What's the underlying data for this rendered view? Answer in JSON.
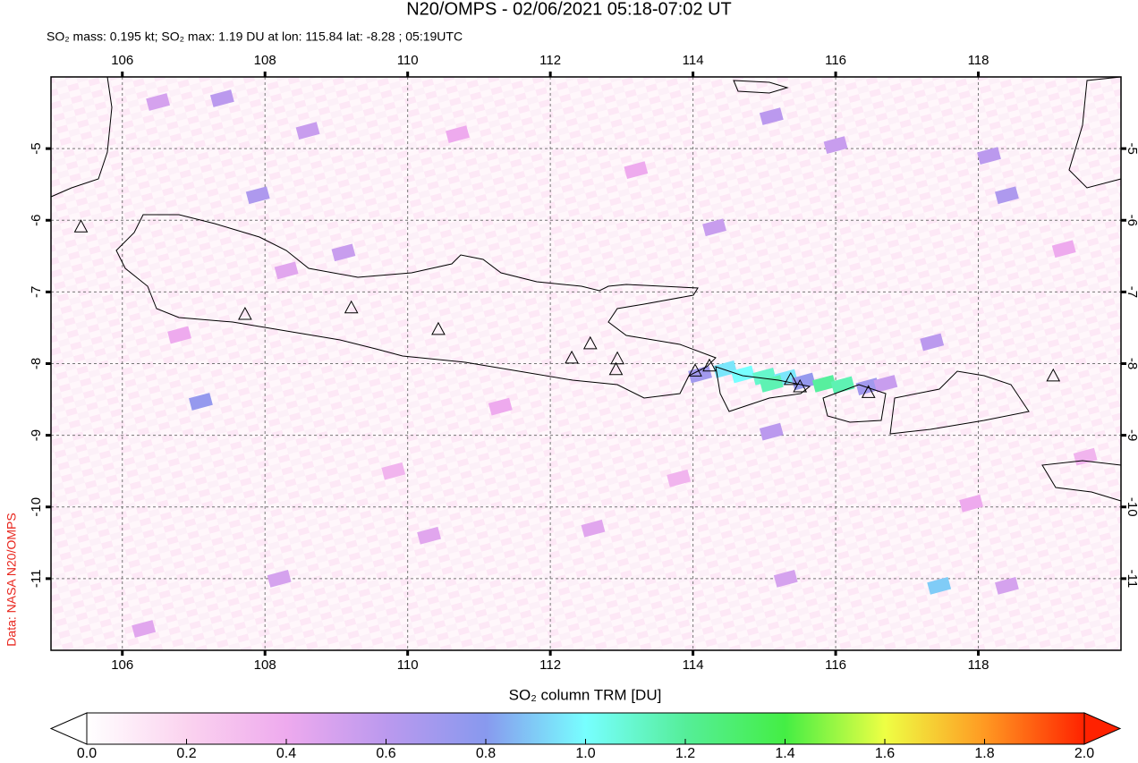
{
  "chart_data": {
    "type": "map",
    "title": "N20/OMPS - 02/06/2021 05:18-07:02 UT",
    "subtitle": "SO₂ mass: 0.195 kt; SO₂ max: 1.19 DU at lon: 115.84 lat: -8.28 ; 05:19UTC",
    "source": "Data: NASA N20/OMPS",
    "xlim": [
      105,
      120
    ],
    "ylim": [
      -12,
      -4
    ],
    "xticks": [
      106,
      108,
      110,
      112,
      114,
      116,
      118
    ],
    "yticks": [
      -5,
      -6,
      -7,
      -8,
      -9,
      -10,
      -11
    ],
    "grid": true,
    "volcanoes": {
      "lon": [
        105.42,
        107.72,
        109.21,
        110.43,
        112.3,
        112.56,
        112.94,
        112.92,
        114.03,
        114.23,
        115.37,
        115.5,
        116.46,
        119.05
      ],
      "lat": [
        -6.1,
        -7.32,
        -7.23,
        -7.53,
        -7.93,
        -7.73,
        -7.94,
        -8.09,
        -8.11,
        -8.04,
        -8.23,
        -8.33,
        -8.41,
        -8.18
      ]
    },
    "so2": {
      "lon": [
        114.1,
        114.45,
        114.7,
        115.0,
        115.3,
        115.55,
        115.84,
        116.1,
        116.45,
        116.7,
        115.1,
        107.1,
        117.45,
        115.1,
        107.9,
        107.4,
        108.6,
        109.1,
        115.1,
        116.0,
        118.15,
        118.4,
        117.35,
        114.3,
        106.5,
        112.6,
        110.3,
        108.2,
        106.3,
        115.3,
        118.4,
        108.3,
        110.7,
        113.2,
        111.3,
        109.8,
        119.2,
        119.5,
        117.9,
        106.8,
        113.8
      ],
      "lat": [
        -8.15,
        -8.08,
        -8.15,
        -8.18,
        -8.2,
        -8.25,
        -8.28,
        -8.3,
        -8.32,
        -8.28,
        -8.28,
        -8.53,
        -11.1,
        -8.95,
        -5.65,
        -4.3,
        -4.75,
        -6.45,
        -4.55,
        -4.95,
        -5.1,
        -5.65,
        -7.7,
        -6.1,
        -4.35,
        -10.3,
        -10.4,
        -11.0,
        -11.7,
        -11.0,
        -11.1,
        -6.7,
        -4.8,
        -5.3,
        -8.6,
        -9.5,
        -6.4,
        -9.3,
        -9.95,
        -7.6,
        -9.6
      ],
      "values": [
        0.7,
        0.95,
        1.0,
        1.1,
        0.95,
        0.75,
        1.19,
        1.15,
        0.7,
        0.55,
        1.15,
        0.75,
        0.9,
        0.6,
        0.65,
        0.6,
        0.55,
        0.55,
        0.6,
        0.55,
        0.6,
        0.65,
        0.6,
        0.55,
        0.5,
        0.45,
        0.45,
        0.5,
        0.45,
        0.5,
        0.5,
        0.45,
        0.4,
        0.4,
        0.4,
        0.35,
        0.4,
        0.35,
        0.4,
        0.4,
        0.35
      ]
    },
    "colorbar": {
      "label": "SO₂ column TRM [DU]",
      "lim": [
        0,
        2
      ],
      "colors": [
        "#ffffff",
        "#fbd3ef",
        "#eeaaee",
        "#bb99ee",
        "#8899ee",
        "#77ffff",
        "#55ee99",
        "#44ee44",
        "#eeff44",
        "#ff9922",
        "#ff2200"
      ],
      "ticks": [
        {
          "value": 0,
          "label": "0.0"
        },
        {
          "value": 0.2,
          "label": "0.2"
        },
        {
          "value": 0.4,
          "label": "0.4"
        },
        {
          "value": 0.6,
          "label": "0.6"
        },
        {
          "value": 0.8,
          "label": "0.8"
        },
        {
          "value": 1,
          "label": "1.0"
        },
        {
          "value": 1.2,
          "label": "1.2"
        },
        {
          "value": 1.4,
          "label": "1.4"
        },
        {
          "value": 1.6,
          "label": "1.6"
        },
        {
          "value": 1.8,
          "label": "1.8"
        },
        {
          "value": 2,
          "label": "2.0"
        }
      ]
    }
  }
}
